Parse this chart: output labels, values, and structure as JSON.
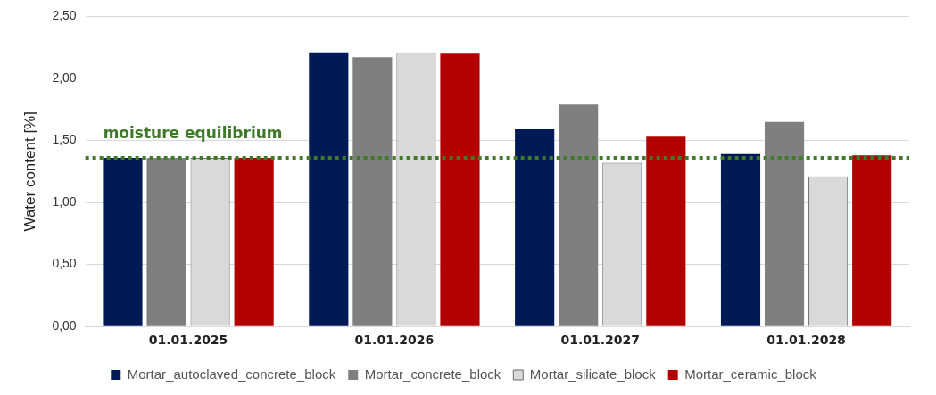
{
  "chart_data": {
    "type": "bar",
    "ylabel": "Water content [%]",
    "categories": [
      "01.01.2025",
      "01.01.2026",
      "01.01.2027",
      "01.01.2028"
    ],
    "series": [
      {
        "name": "Mortar_autoclaved_concrete_block",
        "color": "#001a57",
        "values": [
          1.36,
          2.21,
          1.59,
          1.39
        ]
      },
      {
        "name": "Mortar_concrete_block",
        "color": "#7f7f7f",
        "values": [
          1.36,
          2.17,
          1.79,
          1.65
        ]
      },
      {
        "name": "Mortar_silicate_block",
        "color": "#d9d9d9",
        "values": [
          1.36,
          2.21,
          1.32,
          1.21
        ]
      },
      {
        "name": "Mortar_ceramic_block",
        "color": "#b30000",
        "values": [
          1.36,
          2.2,
          1.53,
          1.38
        ]
      }
    ],
    "ylim": [
      0,
      2.5
    ],
    "yticks": [
      {
        "value": 0,
        "label": "0,00"
      },
      {
        "value": 0.5,
        "label": "0,50"
      },
      {
        "value": 1,
        "label": "1,00"
      },
      {
        "value": 1.5,
        "label": "1,50"
      },
      {
        "value": 2,
        "label": "2,00"
      },
      {
        "value": 2.5,
        "label": "2,50"
      }
    ],
    "ref_lines": [
      {
        "axis": "y",
        "value": 1.36,
        "label": "moisture equilibrium",
        "color": "#3f7a2a",
        "line_style": "dotted"
      }
    ],
    "grid": "y",
    "legend": "bottom"
  }
}
